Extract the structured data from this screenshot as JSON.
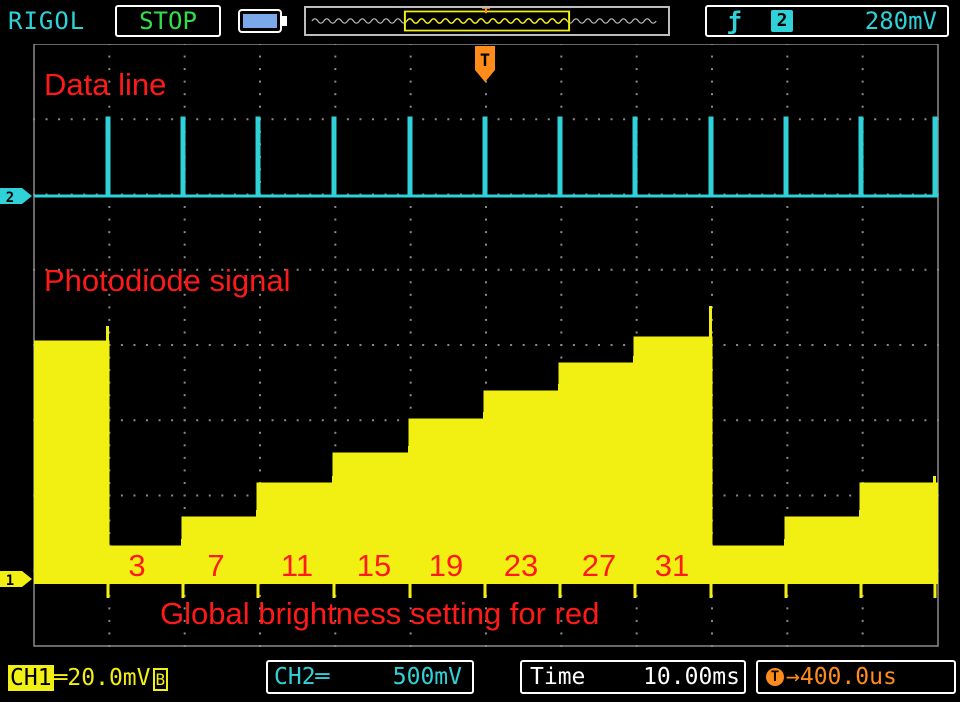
{
  "header": {
    "brand": "RIGOL",
    "run_state": "STOP",
    "trigger": {
      "edge_icon": "rising-edge-icon",
      "source": "2",
      "level": "280mV"
    }
  },
  "channels": {
    "ch1": {
      "label": "CH1",
      "coupling_icon": "dc-coupling-icon",
      "scale": "20.0mV",
      "bw_limit": "B",
      "marker": "1",
      "color": "#f2ef12"
    },
    "ch2": {
      "label": "CH2",
      "coupling_icon": "dc-coupling-icon",
      "scale": "500mV",
      "marker": "2",
      "color": "#2ed2d8"
    }
  },
  "timebase": {
    "label": "Time",
    "scale": "10.00ms",
    "trigger_offset": "400.0us"
  },
  "annotations": {
    "data_line": "Data line",
    "photodiode": "Photodiode signal",
    "caption": "Global brightness setting for red",
    "levels": [
      "3",
      "7",
      "11",
      "15",
      "19",
      "23",
      "27",
      "31"
    ]
  },
  "colors": {
    "ch1": "#f2ef12",
    "ch2": "#2ed2d8",
    "annotation": "#ff1a1a",
    "trigger": "#ff8c1a",
    "run_state": "#2fe04a"
  }
}
